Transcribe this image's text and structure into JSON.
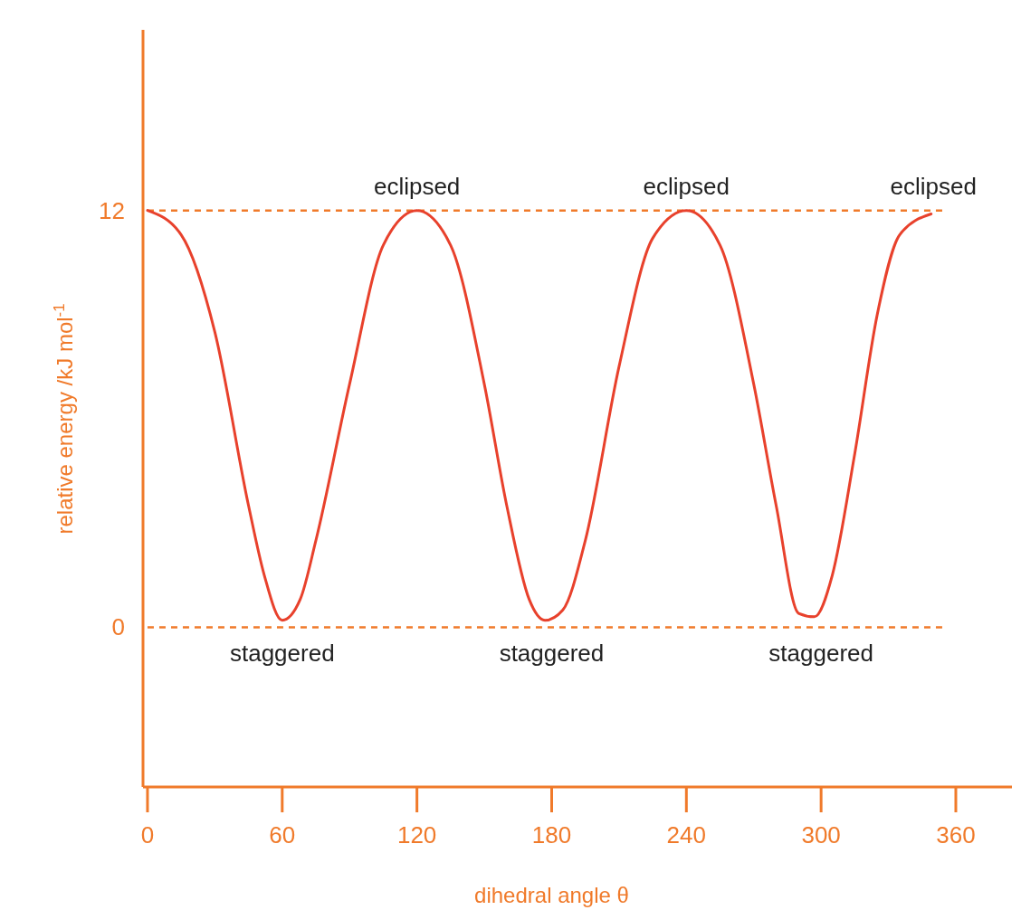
{
  "chart_data": {
    "type": "line",
    "xlabel": "dihedral angle θ",
    "ylabel": "relative energy /kJ mol$^{-1}$",
    "x": [
      0,
      15,
      30,
      45,
      52,
      60,
      68,
      75,
      90,
      105,
      120,
      135,
      150,
      160,
      170,
      177,
      185,
      195,
      210,
      225,
      240,
      255,
      270,
      280,
      290,
      297,
      305,
      315,
      325,
      335,
      349
    ],
    "series": [
      {
        "color": "#e8412c",
        "values": [
          12,
          11.3,
          8.5,
          3.5,
          1.5,
          0.2,
          0.8,
          2.5,
          7,
          11,
          12,
          11,
          7,
          3.5,
          0.8,
          0.2,
          0.5,
          2.5,
          7.5,
          11.2,
          12,
          11,
          7,
          3.5,
          0.4,
          0.3,
          1.5,
          5,
          9,
          11.3,
          11.9
        ]
      }
    ],
    "xlim": [
      -2,
      385
    ],
    "ylim": [
      -4.6,
      17.2
    ],
    "xticks": [
      0,
      60,
      120,
      180,
      240,
      300,
      360
    ],
    "yticks": [
      0,
      12
    ],
    "marker": "none",
    "line_style": "solid",
    "grid": false,
    "ref_lines": [
      {
        "axis": "y",
        "value": 12,
        "color": "#f07a2a",
        "line_style": "dashed"
      },
      {
        "axis": "y",
        "value": 0,
        "color": "#f07a2a",
        "line_style": "dashed"
      }
    ],
    "annotations": [
      {
        "text": "eclipsed",
        "x": 120,
        "y": 12
      },
      {
        "text": "eclipsed",
        "x": 240,
        "y": 12
      },
      {
        "text": "eclipsed",
        "x": 350,
        "y": 12
      },
      {
        "text": "staggered",
        "x": 60,
        "y": 0
      },
      {
        "text": "staggered",
        "x": 180,
        "y": 0
      },
      {
        "text": "staggered",
        "x": 300,
        "y": 0
      }
    ]
  }
}
